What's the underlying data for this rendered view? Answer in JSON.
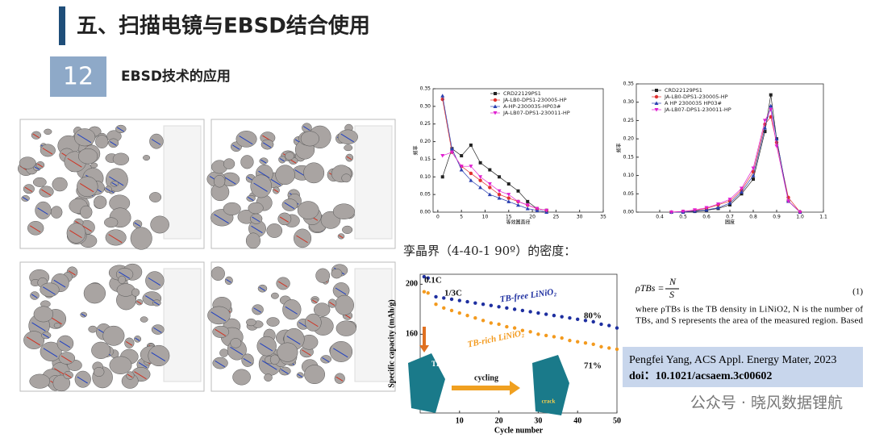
{
  "header": {
    "title": "五、扫描电镜与EBSD结合使用",
    "number": "12",
    "subtitle": "EBSD技术的应用"
  },
  "chart_data": [
    {
      "type": "line",
      "xlabel": "等效圆直径",
      "ylabel": "频率",
      "x": [
        1,
        3,
        5,
        7,
        9,
        11,
        13,
        15,
        17,
        19,
        21,
        23
      ],
      "series": [
        {
          "name": "CRD22129PS1",
          "color": "#222222",
          "marker": "square",
          "values": [
            0.1,
            0.18,
            0.16,
            0.19,
            0.14,
            0.12,
            0.1,
            0.08,
            0.06,
            0.03,
            0.01,
            0.005
          ]
        },
        {
          "name": "JA-LB0-DPS1-230005-HP",
          "color": "#e0312f",
          "marker": "circle",
          "values": [
            0.32,
            0.17,
            0.13,
            0.11,
            0.09,
            0.07,
            0.05,
            0.04,
            0.03,
            0.02,
            0.01,
            0.005
          ]
        },
        {
          "name": "A-HP-2300035-HP03#",
          "color": "#2a3fb0",
          "marker": "triangle",
          "values": [
            0.33,
            0.18,
            0.12,
            0.09,
            0.07,
            0.05,
            0.04,
            0.03,
            0.02,
            0.01,
            0.005,
            0
          ]
        },
        {
          "name": "JA-LB07-DPS1-230011-HP",
          "color": "#e020d0",
          "marker": "down",
          "values": [
            0.16,
            0.17,
            0.13,
            0.13,
            0.1,
            0.08,
            0.06,
            0.05,
            0.03,
            0.02,
            0.01,
            0.005
          ]
        }
      ],
      "xlim": [
        -1,
        35
      ],
      "xticks": [
        0,
        5,
        10,
        15,
        20,
        25,
        30,
        35
      ],
      "ylim": [
        0,
        0.35
      ],
      "yticks": [
        {
          "value": 0,
          "label": "0.00"
        },
        0.05,
        {
          "value": 0.1,
          "label": "0.10"
        },
        0.15,
        {
          "value": 0.2,
          "label": "0.20"
        },
        0.25,
        {
          "value": 0.3,
          "label": "0.30"
        },
        0.35
      ]
    },
    {
      "type": "line",
      "xlabel": "圆度",
      "ylabel": "频率",
      "x": [
        0.45,
        0.5,
        0.55,
        0.6,
        0.65,
        0.7,
        0.75,
        0.8,
        0.85,
        0.875,
        0.9,
        0.95,
        1.0
      ],
      "series": [
        {
          "name": "CRD22129PS1",
          "color": "#222222",
          "marker": "square",
          "values": [
            0,
            0,
            0.002,
            0.005,
            0.01,
            0.02,
            0.05,
            0.09,
            0.22,
            0.32,
            0.2,
            0.03,
            0
          ]
        },
        {
          "name": "JA-LB0-DPS1-230005-HP",
          "color": "#e0312f",
          "marker": "circle",
          "values": [
            0,
            0.002,
            0.005,
            0.01,
            0.02,
            0.03,
            0.06,
            0.11,
            0.24,
            0.26,
            0.19,
            0.04,
            0
          ]
        },
        {
          "name": "A HP 2300035 HP03#",
          "color": "#2a3fb0",
          "marker": "triangle",
          "values": [
            0,
            0,
            0.003,
            0.006,
            0.012,
            0.025,
            0.055,
            0.1,
            0.23,
            0.29,
            0.2,
            0.03,
            0
          ]
        },
        {
          "name": "JA-LB07-DPS1-230011-HP",
          "color": "#e020d0",
          "marker": "down",
          "values": [
            0,
            0.002,
            0.006,
            0.012,
            0.022,
            0.035,
            0.065,
            0.12,
            0.25,
            0.28,
            0.18,
            0.03,
            0
          ]
        }
      ],
      "xlim": [
        0.3,
        1.1
      ],
      "xticks": [
        0.4,
        0.5,
        0.6,
        0.7,
        0.8,
        0.9,
        {
          "value": 1,
          "label": "1.0"
        },
        1.1
      ],
      "ylim": [
        0,
        0.35
      ],
      "yticks": [
        {
          "value": 0,
          "label": "0.00"
        },
        0.05,
        {
          "value": 0.1,
          "label": "0.10"
        },
        0.15,
        {
          "value": 0.2,
          "label": "0.20"
        },
        0.25,
        {
          "value": 0.3,
          "label": "0.30"
        },
        0.35
      ]
    },
    {
      "type": "line",
      "xlabel": "Cycle number",
      "ylabel": "Specific capacity (mAh/g)",
      "x": [
        1,
        2,
        4,
        6,
        8,
        10,
        12,
        14,
        16,
        18,
        20,
        22,
        24,
        26,
        28,
        30,
        32,
        34,
        36,
        38,
        40,
        42,
        44,
        46,
        48,
        50
      ],
      "series": [
        {
          "name": "TB-free LiNiO₂",
          "color": "#1e2fa0",
          "marker": "circle",
          "values": [
            206,
            205,
            190,
            189,
            188,
            187,
            186,
            185,
            184,
            183,
            182,
            181,
            180,
            179,
            178,
            177,
            176,
            175,
            174,
            173,
            172,
            171,
            170,
            168,
            167,
            165
          ]
        },
        {
          "name": "TB-rich LiNiO₂",
          "color": "#f39a1e",
          "marker": "circle",
          "values": [
            194,
            193,
            184,
            181,
            179,
            177,
            175,
            173,
            171,
            169,
            168,
            166,
            165,
            163,
            162,
            160,
            159,
            158,
            157,
            155,
            154,
            153,
            152,
            150,
            149,
            148
          ]
        }
      ],
      "annotations": [
        "0.1C",
        "1/3C",
        "80%",
        "71%",
        "TB",
        "cycling",
        "crack"
      ],
      "xlim": [
        0,
        50
      ],
      "xticks": [
        10,
        20,
        30,
        40,
        50
      ],
      "ylim": [
        97,
        208
      ],
      "yticks": [
        160,
        200
      ]
    }
  ],
  "caption": "孪晶界（4-40-1  90º）的密度：",
  "formula": {
    "lhs": "ρTBs =",
    "num": "N",
    "den": "S",
    "number": "(1)",
    "text": [
      "where ρTBs is the TB density in LiNiO2, N is the number of",
      "TBs, and S represents the area of the measured region. Based"
    ]
  },
  "citation": {
    "line1": "Pengfei Yang, ACS Appl. Energy Mater, 2023",
    "line2": "doi：10.1021/acsaem.3c00602"
  },
  "watermark": "公众号 · 晓风数据锂航"
}
